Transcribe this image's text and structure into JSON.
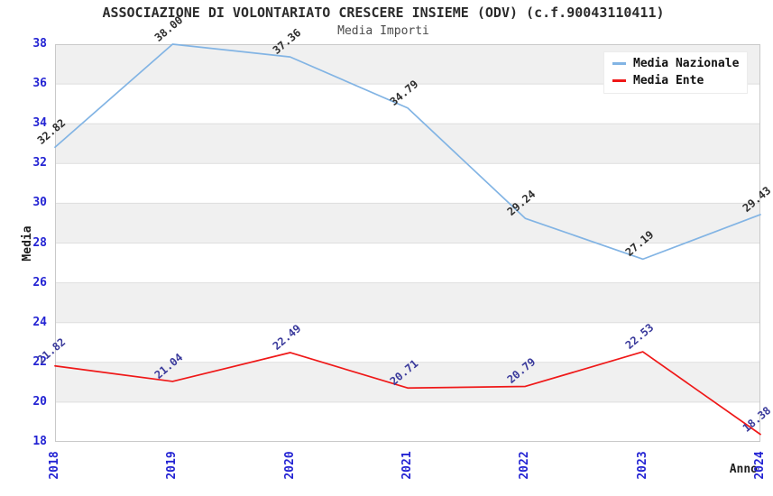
{
  "header": {
    "title": "ASSOCIAZIONE DI VOLONTARIATO CRESCERE INSIEME (ODV) (c.f.90043110411)",
    "subtitle": "Media Importi"
  },
  "axes": {
    "y_label": "Media",
    "x_label": "Anno"
  },
  "legend": {
    "items": [
      {
        "label": "Media Nazionale"
      },
      {
        "label": "Media Ente"
      }
    ]
  },
  "chart_data": {
    "type": "line",
    "title": "ASSOCIAZIONE DI VOLONTARIATO CRESCERE INSIEME (ODV) (c.f.90043110411)",
    "subtitle": "Media Importi",
    "xlabel": "Anno",
    "ylabel": "Media",
    "x": [
      "2018",
      "2019",
      "2020",
      "2021",
      "2022",
      "2023",
      "2024"
    ],
    "series": [
      {
        "name": "Media Nazionale",
        "color": "#82b4e4",
        "label_color": "#2e2e2e",
        "values": [
          32.82,
          38.0,
          37.36,
          34.79,
          29.24,
          27.19,
          29.43
        ]
      },
      {
        "name": "Media Ente",
        "color": "#ef1818",
        "label_color": "#39399b",
        "values": [
          21.82,
          21.04,
          22.49,
          20.71,
          20.79,
          22.53,
          18.38
        ]
      }
    ],
    "ylim": [
      18,
      38
    ],
    "ytick_step": 2,
    "grid": "horizontal-bands",
    "legend_position": "top-right",
    "tick_label_color": "#2323d3",
    "band_colors": [
      "#f0f0f0",
      "#ffffff"
    ],
    "gridline_color": "#dedede",
    "plot_border_color": "#c9c9c9"
  }
}
